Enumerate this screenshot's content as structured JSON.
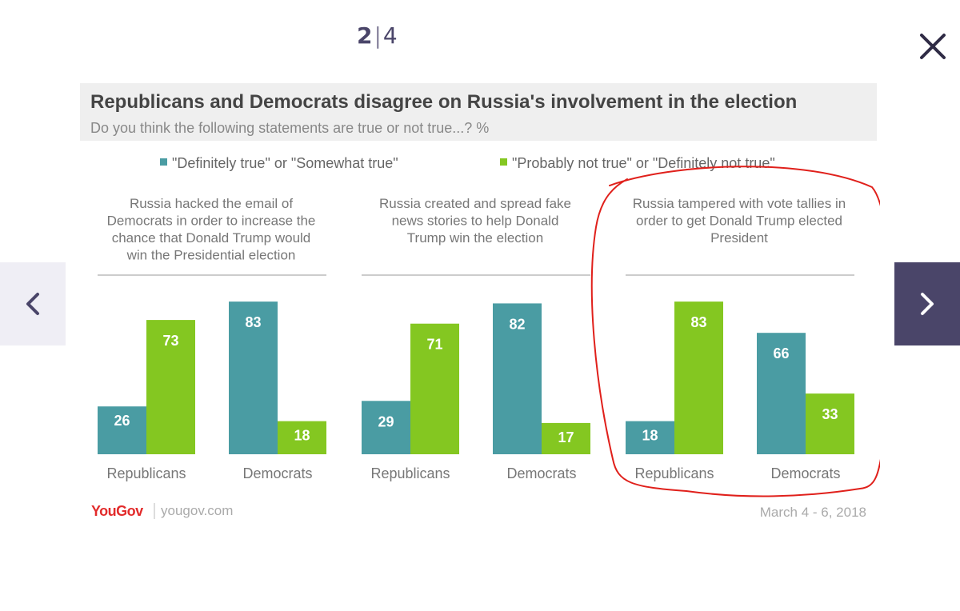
{
  "viewer": {
    "current_page": "2",
    "separator": "|",
    "total_pages": "4",
    "close_icon": "close-icon",
    "prev_icon": "chevron-left-icon",
    "next_icon": "chevron-right-icon",
    "colors": {
      "nav_dark": "#4a4569",
      "nav_light": "#efeef5"
    }
  },
  "chart_data": {
    "type": "bar",
    "title": "Republicans and Democrats disagree on Russia's involvement in the election",
    "subtitle": "Do you think the following statements are true or not true...? %",
    "legend": [
      {
        "label": "\"Definitely true\" or \"Somewhat true\"",
        "color": "#4a9ca3"
      },
      {
        "label": "\"Probably not true\" or \"Definitely not true\"",
        "color": "#84c721"
      }
    ],
    "panels": [
      {
        "title_lines": [
          "Russia hacked the email of",
          "Democrats in order to increase the",
          "chance that Donald Trump would",
          "win the Presidential election"
        ],
        "groups": [
          {
            "label": "Republicans",
            "values": [
              26,
              73
            ]
          },
          {
            "label": "Democrats",
            "values": [
              83,
              18
            ]
          }
        ]
      },
      {
        "title_lines": [
          "Russia created and spread fake",
          "news stories to help Donald",
          "Trump win the election"
        ],
        "groups": [
          {
            "label": "Republicans",
            "values": [
              29,
              71
            ]
          },
          {
            "label": "Democrats",
            "values": [
              82,
              17
            ]
          }
        ]
      },
      {
        "title_lines": [
          "Russia tampered with vote tallies in",
          "order to get Donald Trump elected",
          "President"
        ],
        "groups": [
          {
            "label": "Republicans",
            "values": [
              18,
              83
            ]
          },
          {
            "label": "Democrats",
            "values": [
              66,
              33
            ]
          }
        ]
      }
    ],
    "ylim": [
      0,
      100
    ],
    "source_brand": "YouGov",
    "source_url": "yougov.com",
    "date": "March 4 - 6, 2018",
    "annotation_color": "#e0201b"
  }
}
